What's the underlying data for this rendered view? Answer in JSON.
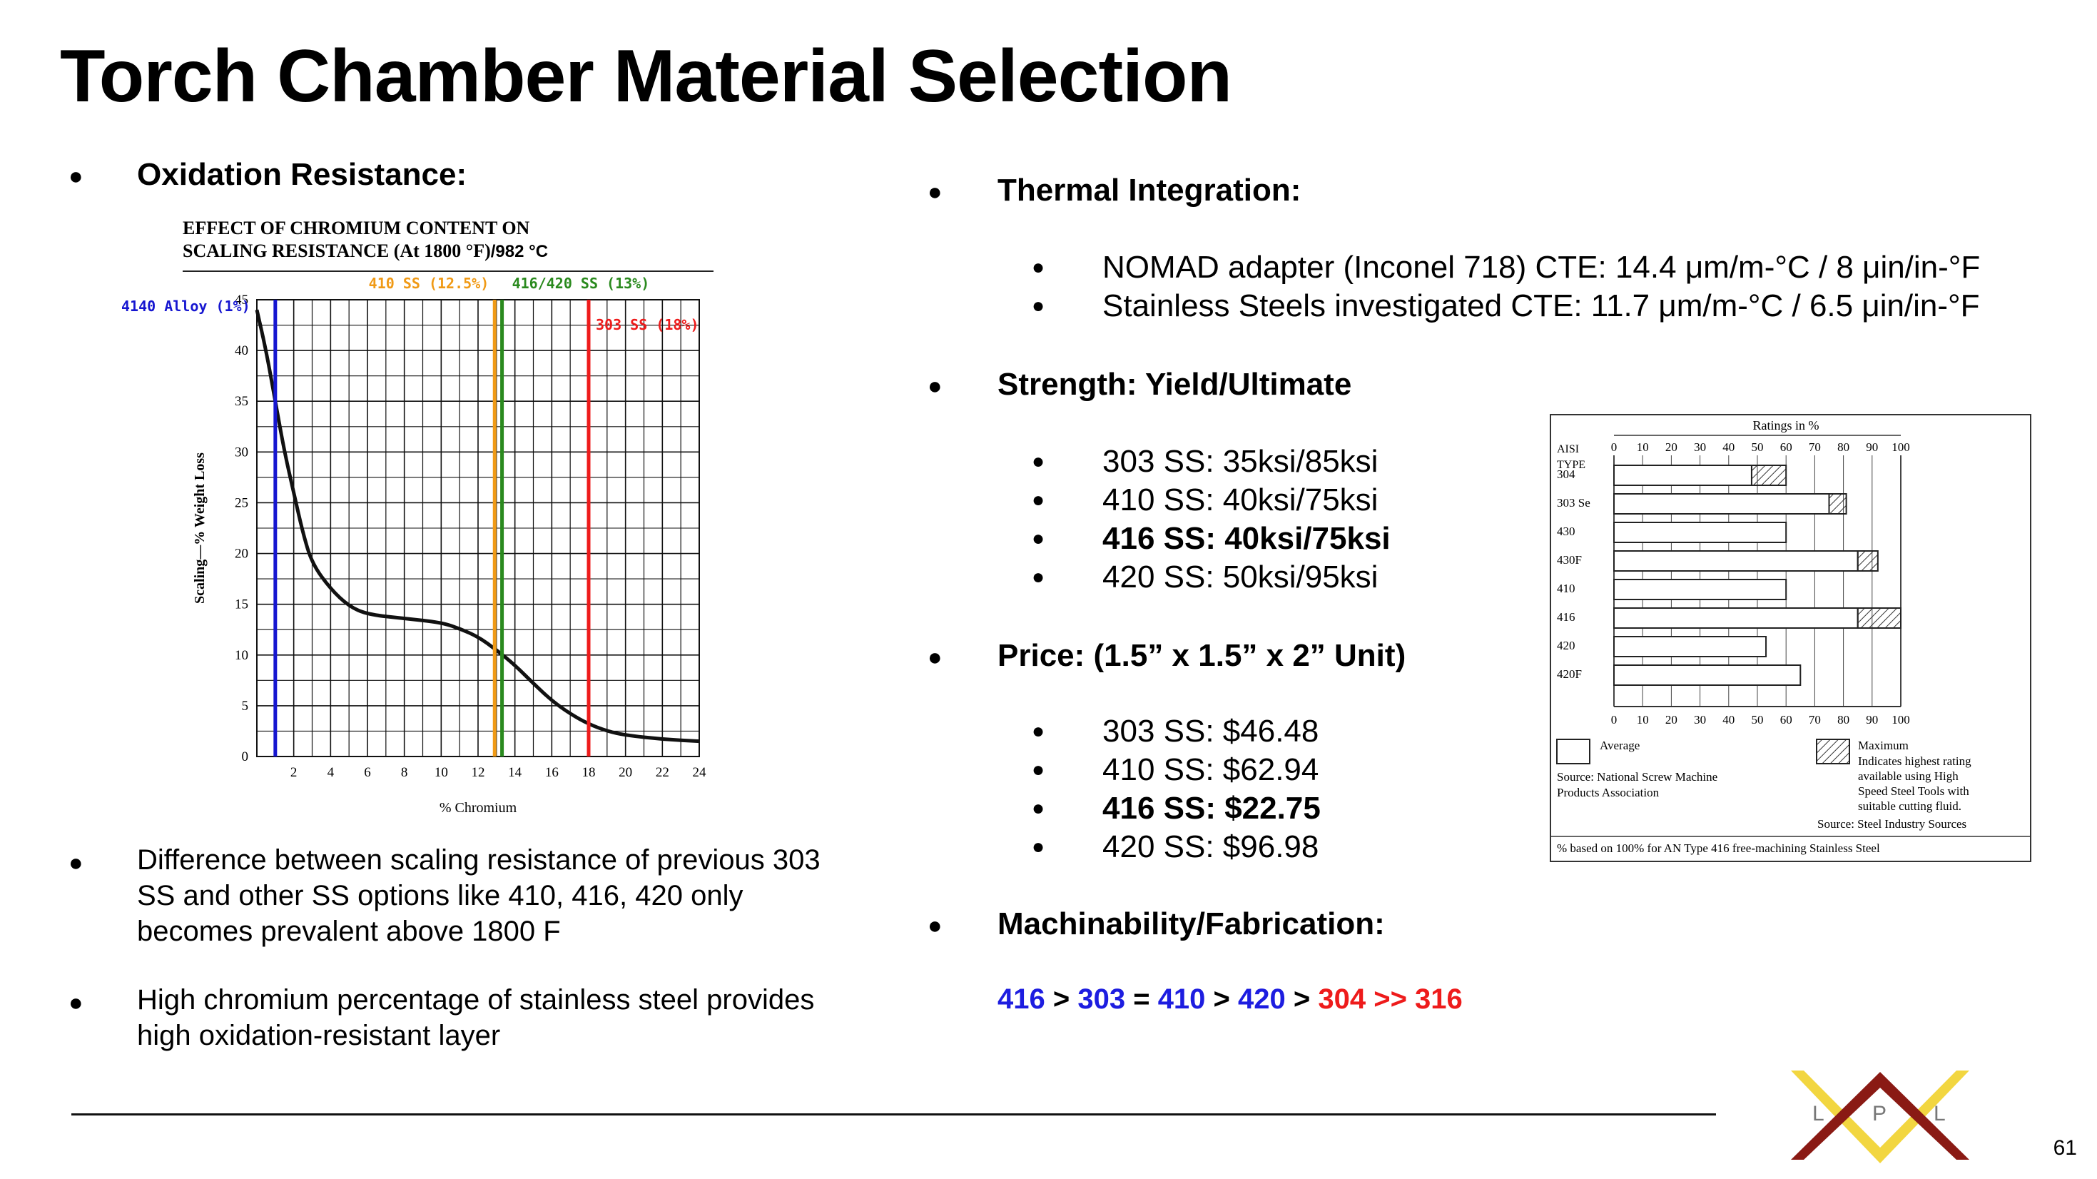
{
  "title": "Torch Chamber Material Selection",
  "left": {
    "oxidation_heading": "Oxidation Resistance:",
    "bullet1": "Difference between scaling resistance of previous 303 SS and other SS options like 410, 416, 420 only becomes prevalent above 1800 F",
    "bullet2": "High chromium percentage of stainless steel provides high oxidation-resistant layer"
  },
  "chart_data": {
    "type": "line",
    "title_line1": "EFFECT OF CHROMIUM CONTENT ON",
    "title_line2": "SCALING RESISTANCE (At 1800 °F)",
    "title_suffix": "/982 °C",
    "xlabel": "% Chromium",
    "ylabel": "Scaling—% Weight Loss",
    "xlim": [
      0,
      24
    ],
    "ylim": [
      0,
      45
    ],
    "x_ticks": [
      "2",
      "4",
      "6",
      "8",
      "10",
      "12",
      "14",
      "16",
      "18",
      "20",
      "22",
      "24"
    ],
    "y_ticks": [
      "0",
      "5",
      "10",
      "15",
      "20",
      "25",
      "30",
      "35",
      "40",
      "45"
    ],
    "grid": true,
    "series": [
      {
        "x": [
          0,
          0.5,
          1,
          1.5,
          2,
          2.5,
          3,
          4,
          5,
          6,
          8,
          10,
          11,
          12,
          13,
          14,
          15,
          16,
          17,
          18,
          19,
          20,
          22,
          24
        ],
        "y": [
          44,
          40,
          35,
          30,
          26,
          22,
          19,
          16.5,
          14.8,
          14,
          13.6,
          13.2,
          12.6,
          11.8,
          10.5,
          9,
          7.2,
          5.5,
          4.2,
          3.2,
          2.5,
          2.1,
          1.7,
          1.5
        ]
      }
    ],
    "markers": [
      {
        "label": "4140 Alloy (1%)",
        "x": 1,
        "color": "#1616d0"
      },
      {
        "label": "410 SS (12.5%)",
        "x": 12.9,
        "color": "#f09a16"
      },
      {
        "label": "416/420 SS (13%)",
        "x": 13.3,
        "color": "#2a8a1e"
      },
      {
        "label": "303 SS (18%)",
        "x": 18,
        "color": "#ee1b1b"
      }
    ]
  },
  "right": {
    "thermal_heading": "Thermal Integration:",
    "thermal_items": [
      "NOMAD adapter (Inconel 718) CTE: 14.4 μm/m-°C / 8 μin/in-°F",
      "Stainless Steels investigated CTE: 11.7 μm/m-°C / 6.5 μin/in-°F"
    ],
    "strength_heading": "Strength: Yield/Ultimate",
    "strength_items": [
      "303 SS:  35ksi/85ksi",
      "410 SS:  40ksi/75ksi",
      "416 SS:  40ksi/75ksi",
      "420 SS:  50ksi/95ksi"
    ],
    "price_heading": "Price: (1.5” x 1.5” x 2” Unit)",
    "price_items": [
      "303 SS: $46.48",
      "410 SS: $62.94",
      "416 SS: $22.75",
      "420 SS: $96.98"
    ],
    "mach_heading": "Machinability/Fabrication:",
    "mach": [
      {
        "t": "416",
        "c": "#1d1de0"
      },
      {
        "t": " > ",
        "c": "#000000"
      },
      {
        "t": "303",
        "c": "#1d1de0"
      },
      {
        "t": " = ",
        "c": "#000000"
      },
      {
        "t": "410",
        "c": "#1d1de0"
      },
      {
        "t": " > ",
        "c": "#000000"
      },
      {
        "t": "420",
        "c": "#1d1de0"
      },
      {
        "t": " > ",
        "c": "#000000"
      },
      {
        "t": "304 >> 316",
        "c": "#ee1b1b"
      }
    ]
  },
  "ratings": {
    "title": "Ratings in %",
    "aisi": "AISI",
    "type": "TYPE",
    "ticks": [
      "0",
      "10",
      "20",
      "30",
      "40",
      "50",
      "60",
      "70",
      "80",
      "90",
      "100"
    ],
    "rows": [
      {
        "name": "304",
        "avg": 48,
        "max": 60
      },
      {
        "name": "303 Se",
        "avg": 75,
        "max": 81
      },
      {
        "name": "430",
        "avg": 60,
        "max": 60
      },
      {
        "name": "430F",
        "avg": 85,
        "max": 92
      },
      {
        "name": "410",
        "avg": 60,
        "max": 60
      },
      {
        "name": "416",
        "avg": 85,
        "max": 100
      },
      {
        "name": "420",
        "avg": 53,
        "max": 53
      },
      {
        "name": "420F",
        "avg": 65,
        "max": 65
      }
    ],
    "legend_avg": "Average",
    "source1": "Source: National Screw Machine Products Association",
    "legend_max": "Maximum",
    "legend_max_desc": "Indicates highest rating available using High Speed Steel Tools with suitable cutting fluid.",
    "source2": "Source: Steel Industry Sources",
    "footnote": "% based on 100% for AN Type 416 free-machining Stainless Steel"
  },
  "logo": {
    "letters": [
      "L",
      "P",
      "L"
    ]
  },
  "page_number": "61"
}
